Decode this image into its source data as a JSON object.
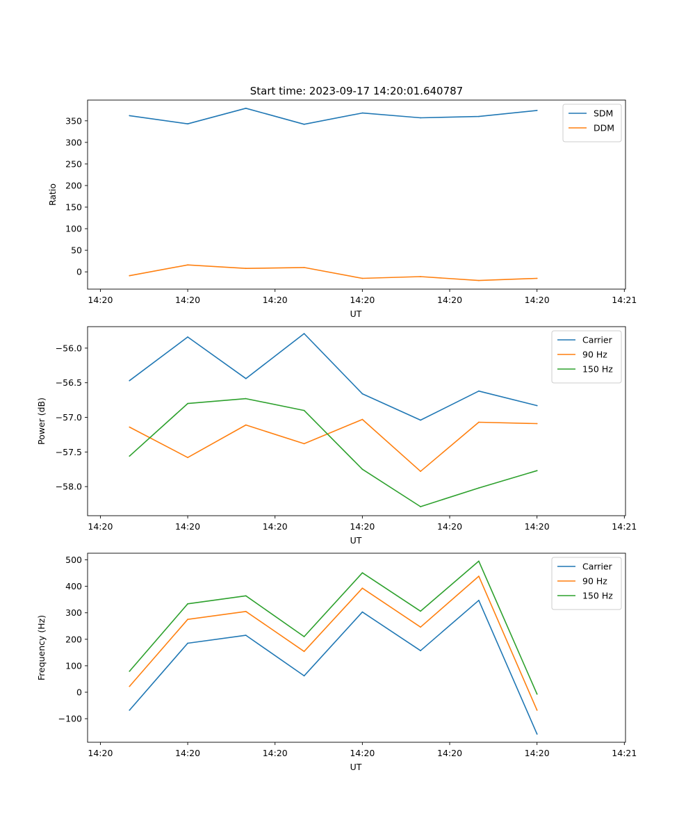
{
  "figure_title": "Start time: 2023-09-17 14:20:01.640787",
  "colors": {
    "blue": "#1f77b4",
    "orange": "#ff7f0e",
    "green": "#2ca02c"
  },
  "chart_data": [
    {
      "type": "line",
      "title": "Start time: 2023-09-17 14:20:01.640787",
      "xlabel": "UT",
      "ylabel": "Ratio",
      "x": [
        0.5,
        1.5,
        2.5,
        3.5,
        4.5,
        5.5,
        6.5,
        7.5
      ],
      "xlim": [
        -0.22,
        9.02
      ],
      "xtick_values": [
        0,
        1.5,
        3,
        4.5,
        6,
        7.5,
        9
      ],
      "xtick_labels": [
        "14:20",
        "14:20",
        "14:20",
        "14:20",
        "14:20",
        "14:20",
        "14:21"
      ],
      "ylim": [
        -40,
        398
      ],
      "yticks": [
        0,
        50,
        100,
        150,
        200,
        250,
        300,
        350
      ],
      "ytick_labels": [
        "0",
        "50",
        "100",
        "150",
        "200",
        "250",
        "300",
        "350"
      ],
      "legend": "top-right",
      "series": [
        {
          "name": "SDM",
          "color": "#1f77b4",
          "values": [
            362,
            343,
            379,
            342,
            368,
            357,
            360,
            374
          ]
        },
        {
          "name": "DDM",
          "color": "#ff7f0e",
          "values": [
            -9,
            16,
            8,
            10,
            -15,
            -11,
            -20,
            -15
          ]
        }
      ]
    },
    {
      "type": "line",
      "title": "",
      "xlabel": "UT",
      "ylabel": "Power (dB)",
      "x": [
        0.5,
        1.5,
        2.5,
        3.5,
        4.5,
        5.5,
        6.5,
        7.5
      ],
      "xlim": [
        -0.22,
        9.02
      ],
      "xtick_values": [
        0,
        1.5,
        3,
        4.5,
        6,
        7.5,
        9
      ],
      "xtick_labels": [
        "14:20",
        "14:20",
        "14:20",
        "14:20",
        "14:20",
        "14:20",
        "14:21"
      ],
      "ylim": [
        -58.42,
        -55.69
      ],
      "yticks": [
        -58.0,
        -57.5,
        -57.0,
        -56.5,
        -56.0
      ],
      "ytick_labels": [
        "−58.0",
        "−57.5",
        "−57.0",
        "−56.5",
        "−56.0"
      ],
      "legend": "top-right",
      "series": [
        {
          "name": "Carrier",
          "color": "#1f77b4",
          "values": [
            -56.47,
            -55.84,
            -56.44,
            -55.79,
            -56.66,
            -57.04,
            -56.62,
            -56.83
          ]
        },
        {
          "name": "90 Hz",
          "color": "#ff7f0e",
          "values": [
            -57.14,
            -57.58,
            -57.11,
            -57.38,
            -57.03,
            -57.78,
            -57.07,
            -57.09
          ]
        },
        {
          "name": "150 Hz",
          "color": "#2ca02c",
          "values": [
            -57.56,
            -56.8,
            -56.73,
            -56.9,
            -57.75,
            -58.29,
            -58.02,
            -57.77
          ]
        }
      ]
    },
    {
      "type": "line",
      "title": "",
      "xlabel": "UT",
      "ylabel": "Frequency (Hz)",
      "x": [
        0.5,
        1.5,
        2.5,
        3.5,
        4.5,
        5.5,
        6.5,
        7.5
      ],
      "xlim": [
        -0.22,
        9.02
      ],
      "xtick_values": [
        0,
        1.5,
        3,
        4.5,
        6,
        7.5,
        9
      ],
      "xtick_labels": [
        "14:20",
        "14:20",
        "14:20",
        "14:20",
        "14:20",
        "14:20",
        "14:21"
      ],
      "ylim": [
        -189,
        525
      ],
      "yticks": [
        -100,
        0,
        100,
        200,
        300,
        400,
        500
      ],
      "ytick_labels": [
        "−100",
        "0",
        "100",
        "200",
        "300",
        "400",
        "500"
      ],
      "legend": "top-right",
      "series": [
        {
          "name": "Carrier",
          "color": "#1f77b4",
          "values": [
            -68,
            185,
            215,
            62,
            303,
            157,
            347,
            -158
          ]
        },
        {
          "name": "90 Hz",
          "color": "#ff7f0e",
          "values": [
            22,
            275,
            305,
            154,
            393,
            246,
            438,
            -68
          ]
        },
        {
          "name": "150 Hz",
          "color": "#2ca02c",
          "values": [
            79,
            334,
            364,
            210,
            451,
            306,
            495,
            -7
          ]
        }
      ]
    }
  ]
}
